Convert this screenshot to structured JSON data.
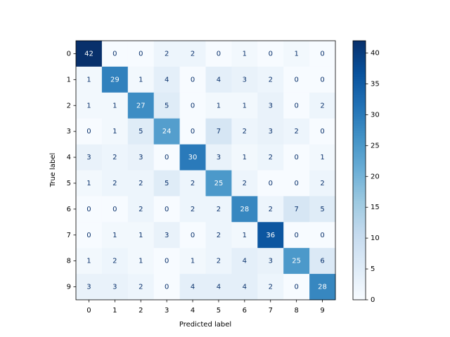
{
  "chart_data": {
    "type": "heatmap",
    "x_label": "Predicted label",
    "y_label": "True label",
    "x_categories": [
      "0",
      "1",
      "2",
      "3",
      "4",
      "5",
      "6",
      "7",
      "8",
      "9"
    ],
    "y_categories": [
      "0",
      "1",
      "2",
      "3",
      "4",
      "5",
      "6",
      "7",
      "8",
      "9"
    ],
    "values": [
      [
        42,
        0,
        0,
        2,
        2,
        0,
        1,
        0,
        1,
        0
      ],
      [
        1,
        29,
        1,
        4,
        0,
        4,
        3,
        2,
        0,
        0
      ],
      [
        1,
        1,
        27,
        5,
        0,
        1,
        1,
        3,
        0,
        2
      ],
      [
        0,
        1,
        5,
        24,
        0,
        7,
        2,
        3,
        2,
        0
      ],
      [
        3,
        2,
        3,
        0,
        30,
        3,
        1,
        2,
        0,
        1
      ],
      [
        1,
        2,
        2,
        5,
        2,
        25,
        2,
        0,
        0,
        2
      ],
      [
        0,
        0,
        2,
        0,
        2,
        2,
        28,
        2,
        7,
        5
      ],
      [
        0,
        1,
        1,
        3,
        0,
        2,
        1,
        36,
        0,
        0
      ],
      [
        1,
        2,
        1,
        0,
        1,
        2,
        4,
        3,
        25,
        6
      ],
      [
        3,
        3,
        2,
        0,
        4,
        4,
        4,
        2,
        0,
        28
      ]
    ],
    "colormap": "Blues",
    "zlim": [
      0,
      42
    ],
    "zticks": [
      0,
      5,
      10,
      15,
      20,
      25,
      30,
      35,
      40
    ]
  }
}
